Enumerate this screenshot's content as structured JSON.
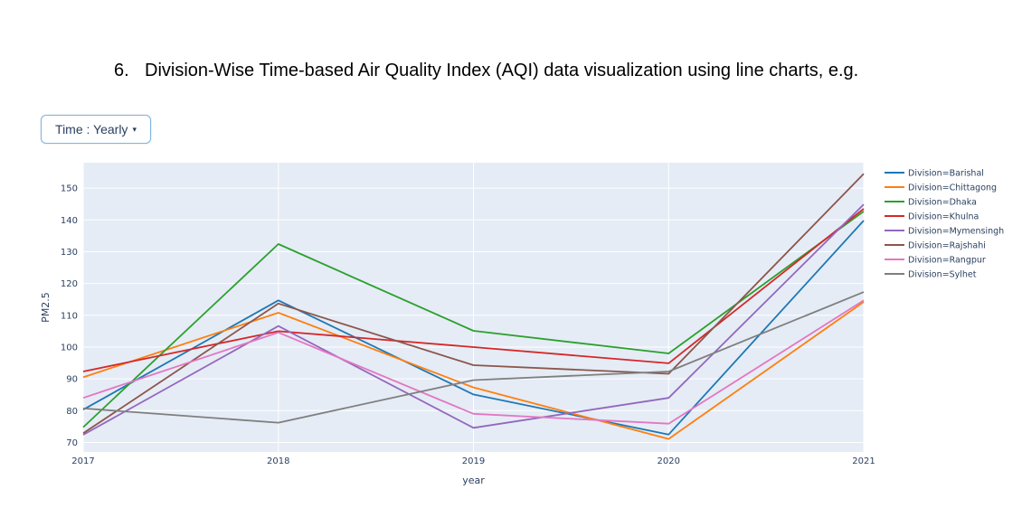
{
  "heading": {
    "number": "6.",
    "text": "Division-Wise Time-based Air Quality Index (AQI) data visualization using line charts, e.g."
  },
  "dropdown": {
    "label": "Time : Yearly",
    "caret": "▾"
  },
  "chart_data": {
    "type": "line",
    "title": "",
    "xlabel": "year",
    "ylabel": "PM2.5",
    "x": [
      2017,
      2018,
      2019,
      2020,
      2021
    ],
    "x_ticks": [
      "2017",
      "2018",
      "2019",
      "2020",
      "2021"
    ],
    "y_ticks": [
      "70",
      "80",
      "90",
      "100",
      "110",
      "120",
      "130",
      "140",
      "150"
    ],
    "xlim": [
      2017,
      2021
    ],
    "ylim": [
      67,
      158
    ],
    "grid": true,
    "legend_position": "right",
    "plot_background": "#e5ecf6",
    "series": [
      {
        "name": "Division=Barishal",
        "color": "#1f77b4",
        "values": [
          80.3,
          114.7,
          85.1,
          72.5,
          139.8
        ]
      },
      {
        "name": "Division=Chittagong",
        "color": "#ff7f0e",
        "values": [
          90.5,
          110.8,
          87.3,
          71.1,
          114.2
        ]
      },
      {
        "name": "Division=Dhaka",
        "color": "#2ca02c",
        "values": [
          74.8,
          132.4,
          105.1,
          98.0,
          142.7
        ]
      },
      {
        "name": "Division=Khulna",
        "color": "#d62728",
        "values": [
          92.3,
          105.0,
          100.0,
          94.9,
          143.5
        ]
      },
      {
        "name": "Division=Mymensingh",
        "color": "#9467bd",
        "values": [
          72.4,
          106.6,
          74.6,
          84.0,
          144.9
        ]
      },
      {
        "name": "Division=Rajshahi",
        "color": "#8c564b",
        "values": [
          72.9,
          113.7,
          94.3,
          91.6,
          154.5
        ]
      },
      {
        "name": "Division=Rangpur",
        "color": "#e377c2",
        "values": [
          84.0,
          104.6,
          79.0,
          75.9,
          114.7
        ]
      },
      {
        "name": "Division=Sylhet",
        "color": "#7f7f7f",
        "values": [
          80.7,
          76.2,
          89.6,
          92.3,
          117.3
        ]
      }
    ]
  }
}
